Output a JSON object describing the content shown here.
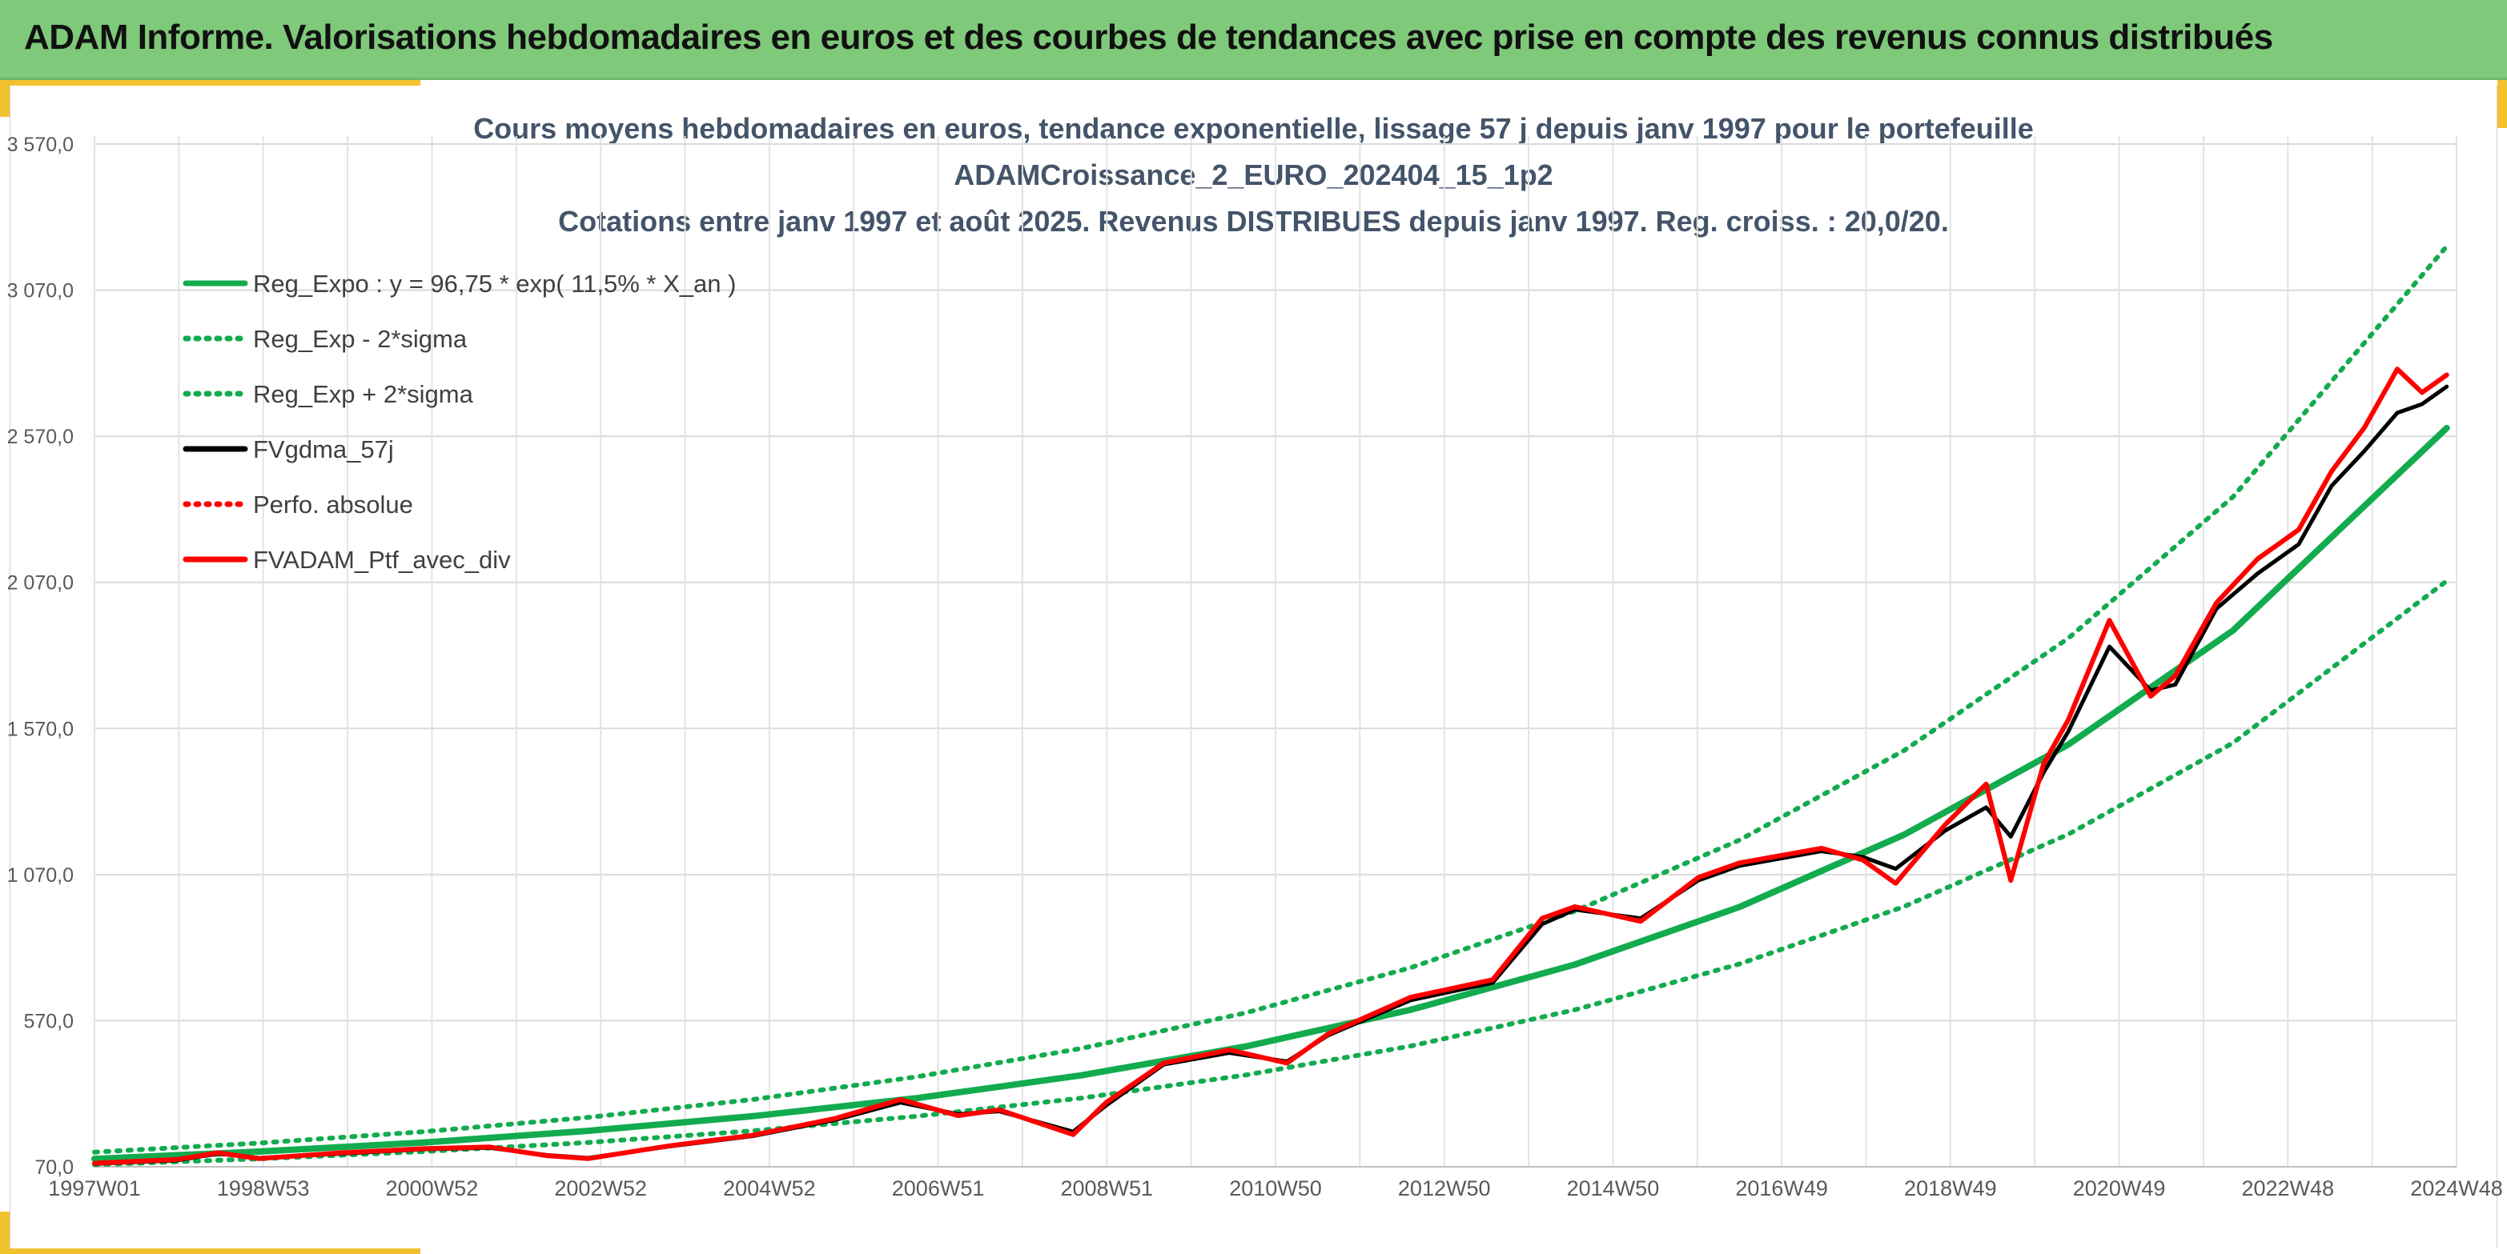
{
  "header": {
    "title": "ADAM Informe. Valorisations hebdomadaires en euros et des courbes de tendances avec prise en compte des revenus connus distribués"
  },
  "colors": {
    "banner": "#7fc97a",
    "accent": "#f2c12e",
    "trend": "#12ab4e",
    "smoothed": "#000000",
    "portfolio": "#ff0000"
  },
  "chart_data": {
    "type": "line",
    "title_lines": [
      "Cours moyens hebdomadaires en euros, tendance exponentielle, lissage 57 j depuis janv 1997 pour le portefeuille",
      "ADAMCroissance_2_EURO_202404_15_1p2",
      "Cotations entre janv 1997 et août 2025. Revenus DISTRIBUES depuis janv 1997. Reg. croiss. : 20,0/20."
    ],
    "xlabel": "",
    "ylabel": "",
    "ylim": [
      70,
      3570
    ],
    "y_ticks": [
      "70,0",
      "570,0",
      "1 070,0",
      "1 570,0",
      "2 070,0",
      "2 570,0",
      "3 070,0",
      "3 570,0"
    ],
    "x_ticks": [
      "1997W01",
      "1998W53",
      "2000W52",
      "2002W52",
      "2004W52",
      "2006W51",
      "2008W51",
      "2010W50",
      "2012W50",
      "2014W50",
      "2016W49",
      "2018W49",
      "2020W49",
      "2022W48",
      "2024W48"
    ],
    "grid": true,
    "legend_position": "top-left",
    "series": [
      {
        "name": "Reg_Expo : y = 96,75 * exp( 11,5% *  X_an )",
        "style": "solid",
        "color": "#12ab4e",
        "x": [
          1997,
          1999,
          2001,
          2003,
          2005,
          2007,
          2009,
          2011,
          2013,
          2015,
          2017,
          2019,
          2021,
          2023,
          2025.6
        ],
        "y": [
          97,
          122,
          153,
          193,
          243,
          305,
          383,
          482,
          607,
          762,
          959,
          1206,
          1515,
          1905,
          2598
        ]
      },
      {
        "name": "Reg_Exp - 2*sigma",
        "style": "dotted",
        "color": "#12ab4e",
        "x": [
          1997,
          1999,
          2001,
          2003,
          2005,
          2007,
          2009,
          2011,
          2013,
          2015,
          2017,
          2019,
          2021,
          2023,
          2025.6
        ],
        "y": [
          77,
          97,
          122,
          153,
          193,
          243,
          305,
          384,
          483,
          607,
          764,
          960,
          1208,
          1520,
          2075
        ]
      },
      {
        "name": "Reg_Exp + 2*sigma",
        "style": "dotted",
        "color": "#12ab4e",
        "x": [
          1997,
          1999,
          2001,
          2003,
          2005,
          2007,
          2009,
          2011,
          2013,
          2015,
          2017,
          2019,
          2021,
          2023,
          2025.6
        ],
        "y": [
          120,
          151,
          190,
          239,
          300,
          378,
          475,
          597,
          751,
          945,
          1188,
          1494,
          1879,
          2362,
          3220
        ]
      },
      {
        "name": "FVgdma_57j",
        "style": "solid",
        "color": "#000000",
        "x": [
          1997,
          1998,
          1998.5,
          1999,
          2000,
          2001,
          2001.8,
          2002.5,
          2003,
          2004,
          2005,
          2006,
          2006.8,
          2007.5,
          2008,
          2008.9,
          2009.3,
          2010,
          2010.8,
          2011.5,
          2012,
          2013,
          2014,
          2014.6,
          2015,
          2015.8,
          2016.5,
          2017,
          2018,
          2018.5,
          2018.9,
          2019.5,
          2020,
          2020.3,
          2020.7,
          2021,
          2021.5,
          2022,
          2022.3,
          2022.8,
          2023.3,
          2023.8,
          2024.2,
          2024.6,
          2025,
          2025.3,
          2025.6
        ],
        "y": [
          80,
          92,
          115,
          100,
          115,
          130,
          135,
          110,
          100,
          140,
          175,
          230,
          290,
          250,
          260,
          190,
          280,
          420,
          460,
          430,
          520,
          640,
          700,
          900,
          950,
          920,
          1050,
          1100,
          1150,
          1130,
          1090,
          1220,
          1300,
          1200,
          1420,
          1560,
          1850,
          1700,
          1720,
          1980,
          2100,
          2200,
          2400,
          2520,
          2650,
          2680,
          2740
        ]
      },
      {
        "name": "Perfo. absolue",
        "style": "dotted",
        "color": "#ff0000",
        "x": [],
        "y": []
      },
      {
        "name": "FVADAM_Ptf_avec_div",
        "style": "solid",
        "color": "#ff0000",
        "x": [
          1997,
          1998,
          1998.5,
          1999,
          2000,
          2001,
          2001.8,
          2002.5,
          2003,
          2004,
          2005,
          2006,
          2006.8,
          2007.5,
          2008,
          2008.9,
          2009.3,
          2010,
          2010.8,
          2011.5,
          2012,
          2013,
          2014,
          2014.6,
          2015,
          2015.8,
          2016.5,
          2017,
          2018,
          2018.5,
          2018.9,
          2019.5,
          2020,
          2020.3,
          2020.7,
          2021,
          2021.5,
          2022,
          2022.3,
          2022.8,
          2023.3,
          2023.8,
          2024.2,
          2024.6,
          2025,
          2025.3,
          2025.6
        ],
        "y": [
          82,
          95,
          118,
          98,
          118,
          132,
          138,
          108,
          98,
          142,
          178,
          235,
          300,
          245,
          265,
          180,
          290,
          425,
          470,
          425,
          525,
          650,
          710,
          920,
          960,
          910,
          1060,
          1110,
          1160,
          1120,
          1040,
          1240,
          1380,
          1050,
          1450,
          1600,
          1940,
          1680,
          1750,
          2000,
          2150,
          2250,
          2450,
          2600,
          2800,
          2720,
          2780
        ]
      }
    ]
  }
}
